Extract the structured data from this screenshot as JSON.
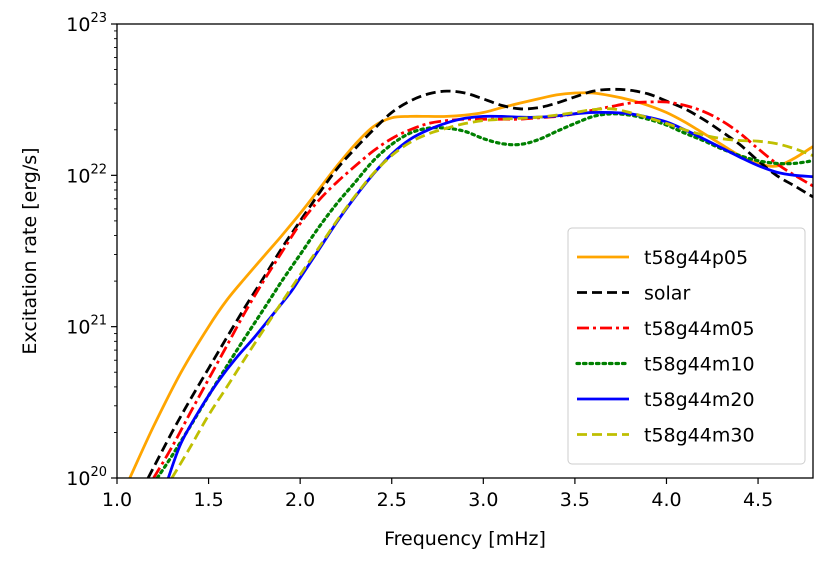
{
  "chart_data": {
    "type": "line",
    "title": "",
    "xlabel": "Frequency  [mHz]",
    "ylabel": "Excitation rate  [erg/s]",
    "xlim": [
      1.0,
      4.8
    ],
    "ylim": [
      1e+20,
      1e+23
    ],
    "yscale": "log",
    "x_ticks": [
      1.0,
      1.5,
      2.0,
      2.5,
      3.0,
      3.5,
      4.0,
      4.5
    ],
    "x_tick_labels": [
      "1.0",
      "1.5",
      "2.0",
      "2.5",
      "3.0",
      "3.5",
      "4.0",
      "4.5"
    ],
    "y_ticks": [
      {
        "value": 1e+20,
        "base": "10",
        "exp": "20"
      },
      {
        "value": 1e+21,
        "base": "10",
        "exp": "21"
      },
      {
        "value": 1e+22,
        "base": "10",
        "exp": "22"
      },
      {
        "value": 1e+23,
        "base": "10",
        "exp": "23"
      }
    ],
    "grid": false,
    "legend_position": "lower-right",
    "series": [
      {
        "name": "t58g44p05",
        "color": "#ffa500",
        "dash": "solid",
        "x": [
          1.07,
          1.2,
          1.35,
          1.5,
          1.6,
          1.7,
          1.8,
          1.9,
          2.0,
          2.1,
          2.2,
          2.3,
          2.4,
          2.5,
          2.6,
          2.7,
          2.8,
          2.9,
          3.0,
          3.1,
          3.2,
          3.3,
          3.4,
          3.5,
          3.6,
          3.7,
          3.8,
          3.9,
          4.0,
          4.1,
          4.2,
          4.3,
          4.4,
          4.5,
          4.6,
          4.7,
          4.8
        ],
        "y": [
          1e+20,
          2.2e+20,
          5e+20,
          1e+21,
          1.5e+21,
          2.1e+21,
          2.9e+21,
          4e+21,
          5.6e+21,
          8e+21,
          1.15e+22,
          1.6e+22,
          2.1e+22,
          2.4e+22,
          2.45e+22,
          2.45e+22,
          2.45e+22,
          2.5e+22,
          2.6e+22,
          2.8e+22,
          3e+22,
          3.2e+22,
          3.4e+22,
          3.5e+22,
          3.5e+22,
          3.35e+22,
          3.15e+22,
          2.9e+22,
          2.6e+22,
          2.25e+22,
          1.9e+22,
          1.6e+22,
          1.35e+22,
          1.2e+22,
          1.15e+22,
          1.3e+22,
          1.55e+22
        ]
      },
      {
        "name": "solar",
        "color": "#000000",
        "dash": "dashed",
        "x": [
          1.17,
          1.3,
          1.4,
          1.5,
          1.6,
          1.7,
          1.8,
          1.9,
          2.0,
          2.1,
          2.2,
          2.3,
          2.4,
          2.5,
          2.6,
          2.7,
          2.8,
          2.9,
          3.0,
          3.1,
          3.2,
          3.3,
          3.4,
          3.5,
          3.6,
          3.7,
          3.8,
          3.9,
          4.0,
          4.1,
          4.2,
          4.3,
          4.4,
          4.5,
          4.6,
          4.7,
          4.8
        ],
        "y": [
          1e+20,
          2e+20,
          3.3e+20,
          5.3e+20,
          8.5e+20,
          1.35e+21,
          2.1e+21,
          3.3e+21,
          5e+21,
          7.5e+21,
          1.1e+22,
          1.5e+22,
          2e+22,
          2.6e+22,
          3.1e+22,
          3.45e+22,
          3.6e+22,
          3.5e+22,
          3.2e+22,
          2.9e+22,
          2.75e+22,
          2.8e+22,
          3e+22,
          3.3e+22,
          3.6e+22,
          3.7e+22,
          3.65e+22,
          3.45e+22,
          3.1e+22,
          2.75e+22,
          2.35e+22,
          1.95e+22,
          1.6e+22,
          1.25e+22,
          1e+22,
          8.5e+21,
          7.2e+21
        ]
      },
      {
        "name": "t58g44m05",
        "color": "#ff0000",
        "dash": "dashdot",
        "x": [
          1.2,
          1.3,
          1.4,
          1.5,
          1.6,
          1.7,
          1.8,
          1.9,
          2.0,
          2.1,
          2.2,
          2.3,
          2.4,
          2.5,
          2.6,
          2.7,
          2.8,
          2.9,
          3.0,
          3.1,
          3.2,
          3.3,
          3.4,
          3.5,
          3.6,
          3.7,
          3.8,
          3.9,
          4.0,
          4.1,
          4.2,
          4.3,
          4.4,
          4.5,
          4.6,
          4.7,
          4.8
        ],
        "y": [
          1e+20,
          1.6e+20,
          2.7e+20,
          4.5e+20,
          7.5e+20,
          1.25e+21,
          2e+21,
          3.1e+21,
          4.8e+21,
          6.8e+21,
          9e+21,
          1.15e+22,
          1.45e+22,
          1.75e+22,
          2e+22,
          2.2e+22,
          2.3e+22,
          2.35e+22,
          2.35e+22,
          2.35e+22,
          2.35e+22,
          2.4e+22,
          2.45e+22,
          2.55e+22,
          2.7e+22,
          2.85e+22,
          3e+22,
          3.05e+22,
          3.05e+22,
          2.9e+22,
          2.65e+22,
          2.3e+22,
          1.9e+22,
          1.5e+22,
          1.2e+22,
          1e+22,
          8.5e+21
        ]
      },
      {
        "name": "t58g44m10",
        "color": "#008000",
        "dash": "dotted",
        "x": [
          1.22,
          1.3,
          1.4,
          1.5,
          1.6,
          1.7,
          1.8,
          1.9,
          2.0,
          2.1,
          2.2,
          2.3,
          2.4,
          2.5,
          2.6,
          2.7,
          2.8,
          2.9,
          3.0,
          3.1,
          3.2,
          3.3,
          3.4,
          3.5,
          3.6,
          3.7,
          3.8,
          3.9,
          4.0,
          4.1,
          4.2,
          4.3,
          4.4,
          4.5,
          4.6,
          4.7,
          4.8
        ],
        "y": [
          1e+20,
          1.4e+20,
          2.2e+20,
          3.5e+20,
          5.5e+20,
          8.5e+20,
          1.3e+21,
          2e+21,
          3e+21,
          4.5e+21,
          6.5e+21,
          9e+21,
          1.25e+22,
          1.6e+22,
          1.9e+22,
          2.05e+22,
          2.05e+22,
          1.95e+22,
          1.75e+22,
          1.62e+22,
          1.6e+22,
          1.72e+22,
          1.95e+22,
          2.2e+22,
          2.45e+22,
          2.55e+22,
          2.5e+22,
          2.35e+22,
          2.15e+22,
          1.9e+22,
          1.7e+22,
          1.5e+22,
          1.35e+22,
          1.25e+22,
          1.2e+22,
          1.2e+22,
          1.25e+22
        ]
      },
      {
        "name": "t58g44m20",
        "color": "#0000ff",
        "dash": "solid",
        "x": [
          1.28,
          1.35,
          1.45,
          1.55,
          1.65,
          1.75,
          1.85,
          1.95,
          2.0,
          2.1,
          2.2,
          2.3,
          2.4,
          2.5,
          2.6,
          2.7,
          2.8,
          2.9,
          3.0,
          3.1,
          3.2,
          3.3,
          3.4,
          3.5,
          3.6,
          3.7,
          3.8,
          3.9,
          4.0,
          4.1,
          4.2,
          4.3,
          4.4,
          4.5,
          4.6,
          4.7,
          4.8
        ],
        "y": [
          1e+20,
          1.7e+20,
          2.8e+20,
          4.3e+20,
          6.2e+20,
          8.5e+20,
          1.2e+21,
          1.7e+21,
          2.1e+21,
          3.2e+21,
          4.9e+21,
          7.2e+21,
          1.02e+22,
          1.38e+22,
          1.73e+22,
          2e+22,
          2.22e+22,
          2.38e+22,
          2.45e+22,
          2.45e+22,
          2.42e+22,
          2.42e+22,
          2.47e+22,
          2.55e+22,
          2.6e+22,
          2.6e+22,
          2.55e+22,
          2.42e+22,
          2.25e+22,
          2e+22,
          1.75e+22,
          1.52e+22,
          1.32e+22,
          1.16e+22,
          1.05e+22,
          1e+22,
          9.8e+21
        ]
      },
      {
        "name": "t58g44m30",
        "color": "#bfbf00",
        "dash": "dashed",
        "x": [
          1.3,
          1.4,
          1.5,
          1.6,
          1.7,
          1.8,
          1.9,
          2.0,
          2.1,
          2.2,
          2.3,
          2.4,
          2.5,
          2.6,
          2.7,
          2.8,
          2.9,
          3.0,
          3.1,
          3.2,
          3.3,
          3.4,
          3.5,
          3.6,
          3.7,
          3.8,
          3.9,
          4.0,
          4.1,
          4.2,
          4.3,
          4.4,
          4.5,
          4.6,
          4.7,
          4.8
        ],
        "y": [
          1e+20,
          1.6e+20,
          2.6e+20,
          4e+20,
          6.2e+20,
          9.5e+20,
          1.45e+21,
          2.2e+21,
          3.3e+21,
          5e+21,
          7.3e+21,
          1.03e+22,
          1.35e+22,
          1.65e+22,
          1.88e+22,
          2.05e+22,
          2.2e+22,
          2.3e+22,
          2.35e+22,
          2.38e+22,
          2.42e+22,
          2.5e+22,
          2.6e+22,
          2.72e+22,
          2.75e+22,
          2.6e+22,
          2.4e+22,
          2.2e+22,
          2e+22,
          1.85e+22,
          1.75e+22,
          1.7e+22,
          1.68e+22,
          1.62e+22,
          1.5e+22,
          1.35e+22
        ]
      }
    ]
  }
}
